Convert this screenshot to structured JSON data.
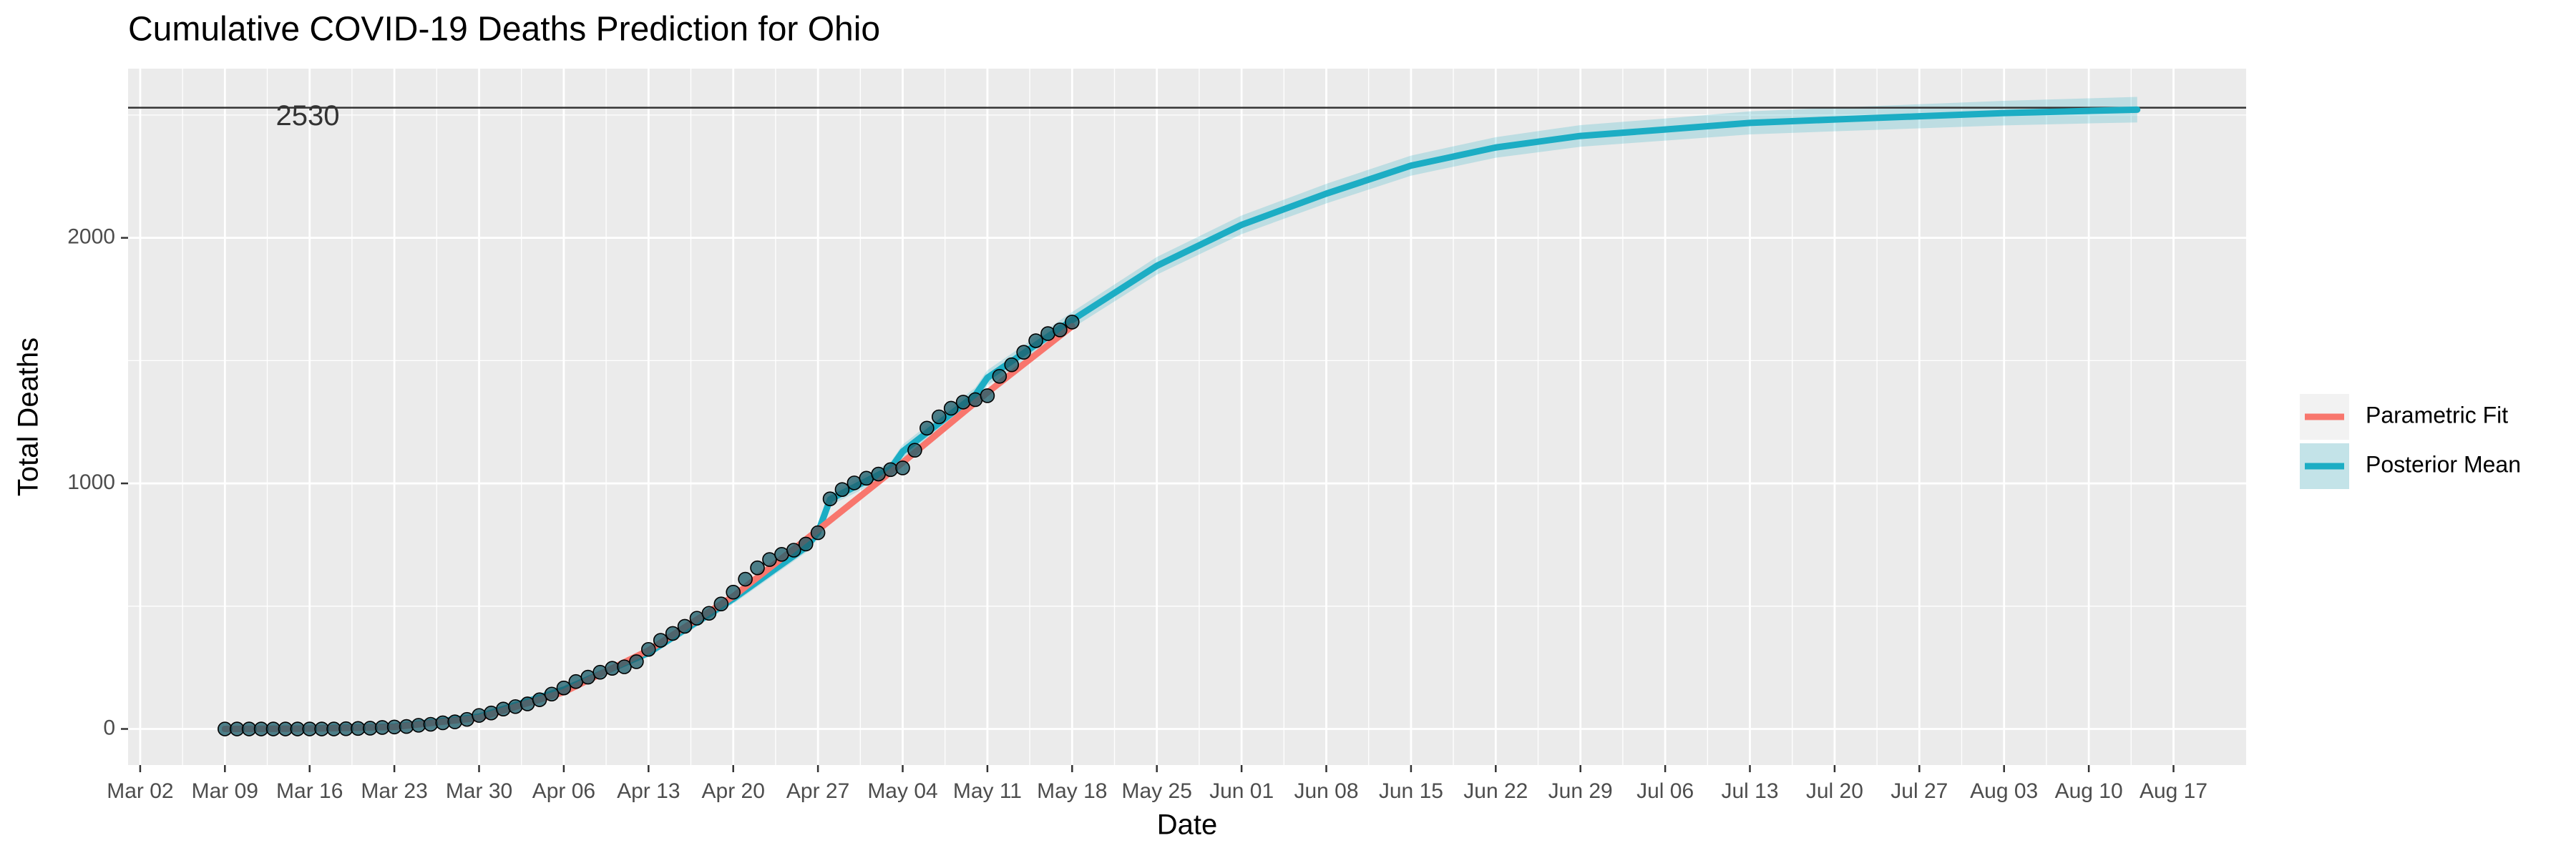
{
  "chart_data": {
    "type": "line",
    "title": "Cumulative COVID-19 Deaths Prediction for Ohio",
    "xlabel": "Date",
    "ylabel": "Total Deaths",
    "xlim": [
      "03-01",
      "08-23"
    ],
    "xticks": [
      {
        "value": "03-02",
        "label": "Mar 02"
      },
      {
        "value": "03-09",
        "label": "Mar 09"
      },
      {
        "value": "03-16",
        "label": "Mar 16"
      },
      {
        "value": "03-23",
        "label": "Mar 23"
      },
      {
        "value": "03-30",
        "label": "Mar 30"
      },
      {
        "value": "04-06",
        "label": "Apr 06"
      },
      {
        "value": "04-13",
        "label": "Apr 13"
      },
      {
        "value": "04-20",
        "label": "Apr 20"
      },
      {
        "value": "04-27",
        "label": "Apr 27"
      },
      {
        "value": "05-04",
        "label": "May 04"
      },
      {
        "value": "05-11",
        "label": "May 11"
      },
      {
        "value": "05-18",
        "label": "May 18"
      },
      {
        "value": "05-25",
        "label": "May 25"
      },
      {
        "value": "06-01",
        "label": "Jun 01"
      },
      {
        "value": "06-08",
        "label": "Jun 08"
      },
      {
        "value": "06-15",
        "label": "Jun 15"
      },
      {
        "value": "06-22",
        "label": "Jun 22"
      },
      {
        "value": "06-29",
        "label": "Jun 29"
      },
      {
        "value": "07-06",
        "label": "Jul 06"
      },
      {
        "value": "07-13",
        "label": "Jul 13"
      },
      {
        "value": "07-20",
        "label": "Jul 20"
      },
      {
        "value": "07-27",
        "label": "Jul 27"
      },
      {
        "value": "08-03",
        "label": "Aug 03"
      },
      {
        "value": "08-10",
        "label": "Aug 10"
      },
      {
        "value": "08-17",
        "label": "Aug 17"
      }
    ],
    "ylim": [
      -147,
      2689
    ],
    "yticks": [
      0,
      1000,
      2000
    ],
    "grid": true,
    "hline": 2530,
    "legend": "right",
    "observed": {
      "color": "#1f5f6b",
      "x": [
        "03-09",
        "03-10",
        "03-11",
        "03-12",
        "03-13",
        "03-14",
        "03-15",
        "03-16",
        "03-17",
        "03-18",
        "03-19",
        "03-20",
        "03-21",
        "03-22",
        "03-23",
        "03-24",
        "03-25",
        "03-26",
        "03-27",
        "03-28",
        "03-29",
        "03-30",
        "03-31",
        "04-01",
        "04-02",
        "04-03",
        "04-04",
        "04-05",
        "04-06",
        "04-07",
        "04-08",
        "04-09",
        "04-10",
        "04-11",
        "04-12",
        "04-13",
        "04-14",
        "04-15",
        "04-16",
        "04-17",
        "04-18",
        "04-19",
        "04-20",
        "04-21",
        "04-22",
        "04-23",
        "04-24",
        "04-25",
        "04-26",
        "04-27",
        "04-28",
        "04-29",
        "04-30",
        "05-01",
        "05-02",
        "05-03",
        "05-04",
        "05-05",
        "05-06",
        "05-07",
        "05-08",
        "05-09",
        "05-10",
        "05-11",
        "05-12",
        "05-13",
        "05-14",
        "05-15",
        "05-16",
        "05-17",
        "05-18"
      ],
      "values": [
        0,
        0,
        0,
        0,
        0,
        0,
        0,
        0,
        0,
        0,
        1,
        2,
        3,
        6,
        8,
        10,
        15,
        19,
        25,
        29,
        39,
        55,
        65,
        81,
        91,
        102,
        119,
        142,
        167,
        193,
        211,
        231,
        247,
        253,
        274,
        324,
        361,
        389,
        418,
        451,
        471,
        509,
        557,
        610,
        656,
        690,
        711,
        728,
        753,
        799,
        937,
        975,
        1002,
        1021,
        1038,
        1056,
        1063,
        1135,
        1225,
        1271,
        1306,
        1331,
        1341,
        1357,
        1436,
        1483,
        1534,
        1581,
        1610,
        1625,
        1657
      ]
    },
    "series": [
      {
        "name": "Parametric Fit",
        "color": "#F8766D",
        "x": [
          "03-09",
          "03-16",
          "03-23",
          "03-30",
          "04-06",
          "04-13",
          "04-20",
          "04-27",
          "05-04",
          "05-11",
          "05-18"
        ],
        "values": [
          0,
          1,
          8,
          45,
          150,
          320,
          540,
          810,
          1085,
          1370,
          1640
        ]
      },
      {
        "name": "Posterior Mean",
        "color": "#1CADC4",
        "x": [
          "03-09",
          "03-16",
          "03-23",
          "03-30",
          "04-06",
          "04-13",
          "04-20",
          "04-26",
          "04-27",
          "04-28",
          "05-03",
          "05-04",
          "05-10",
          "05-11",
          "05-18",
          "05-25",
          "06-01",
          "06-08",
          "06-15",
          "06-22",
          "06-29",
          "07-06",
          "07-13",
          "07-20",
          "07-27",
          "08-03",
          "08-10",
          "08-14"
        ],
        "values": [
          0,
          2,
          10,
          50,
          160,
          310,
          530,
          740,
          800,
          935,
          1060,
          1130,
          1360,
          1430,
          1665,
          1886,
          2053,
          2180,
          2294,
          2368,
          2415,
          2441,
          2468,
          2482,
          2495,
          2508,
          2517,
          2522
        ],
        "lower": [
          0,
          0,
          5,
          42,
          148,
          294,
          510,
          718,
          776,
          910,
          1033,
          1102,
          1330,
          1399,
          1632,
          1850,
          2015,
          2140,
          2253,
          2326,
          2371,
          2396,
          2421,
          2434,
          2446,
          2458,
          2466,
          2470
        ],
        "upper": [
          0,
          4,
          15,
          58,
          172,
          326,
          550,
          762,
          824,
          960,
          1087,
          1158,
          1390,
          1461,
          1698,
          1922,
          2091,
          2220,
          2335,
          2410,
          2459,
          2486,
          2515,
          2530,
          2544,
          2558,
          2568,
          2574
        ]
      }
    ]
  }
}
